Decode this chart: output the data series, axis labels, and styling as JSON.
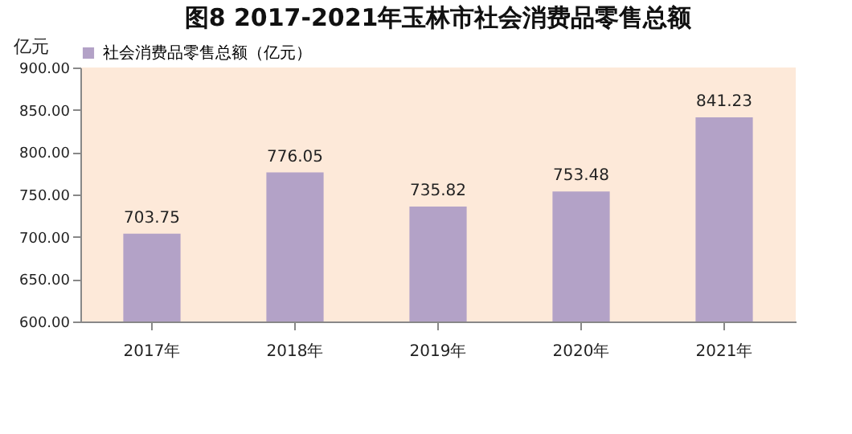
{
  "chart_data": {
    "type": "bar",
    "title": "图8   2017-2021年玉林市社会消费品零售总额",
    "ylabel": "亿元",
    "categories": [
      "2017年",
      "2018年",
      "2019年",
      "2020年",
      "2021年"
    ],
    "series": [
      {
        "name": "社会消费品零售总额（亿元）",
        "color": "#b3a2c7",
        "values": [
          703.75,
          776.05,
          735.82,
          753.48,
          841.23
        ]
      }
    ],
    "ylim": [
      600,
      900
    ],
    "yticks": [
      {
        "value": 600,
        "label": "600.00"
      },
      {
        "value": 650,
        "label": "650.00"
      },
      {
        "value": 700,
        "label": "700.00"
      },
      {
        "value": 750,
        "label": "750.00"
      },
      {
        "value": 800,
        "label": "800.00"
      },
      {
        "value": 850,
        "label": "850.00"
      },
      {
        "value": 900,
        "label": "900.00"
      }
    ],
    "data_labels": true,
    "legend": "top",
    "grid": false
  }
}
